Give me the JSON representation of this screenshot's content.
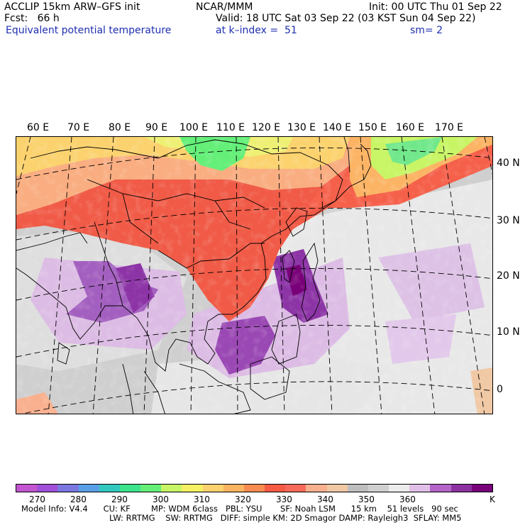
{
  "header": {
    "line1_left": "ACCLIP 15km ARW–GFS init",
    "line1_center": "NCAR/MMM",
    "line1_right": "Init: 00 UTC Thu 01 Sep 22",
    "line2_left": "Fcst:   66 h",
    "line2_right": "Valid: 18 UTC Sat 03 Sep 22 (03 KST Sun 04 Sep 22)",
    "line3_left": "Equivalent potential temperature",
    "line3_center": "at k–index =  51",
    "line3_right": "sm= 2"
  },
  "map": {
    "lon_labels": [
      "60 E",
      "70 E",
      "80 E",
      "90 E",
      "100 E",
      "110 E",
      "120 E",
      "130 E",
      "140 E",
      "150 E",
      "160 E",
      "170 E"
    ],
    "lat_labels": [
      "40 N",
      "30 N",
      "20 N",
      "10 N",
      "0"
    ]
  },
  "colorbar": {
    "colors": [
      "#c355d0",
      "#a050d8",
      "#7a78e0",
      "#5aa0e8",
      "#32c8c0",
      "#3ce38c",
      "#64ef78",
      "#c8f565",
      "#f5f064",
      "#fbd26e",
      "#fcb460",
      "#f88c50",
      "#f55a44",
      "#f76a5a",
      "#f9b08e",
      "#f0c8a4",
      "#bebebe",
      "#d0d0d0",
      "#ececec",
      "#e0c0e8",
      "#b464c8",
      "#8c32a0",
      "#780078"
    ],
    "ticks": [
      "270",
      "280",
      "290",
      "300",
      "310",
      "320",
      "330",
      "340",
      "350",
      "360",
      "K"
    ]
  },
  "footer": {
    "line1": "Model Info: V4.4      CU: KF        MP: WDM 6class   PBL: YSU       SF: Noah LSM      15 km    51 levels   90 sec",
    "line2": "LW: RRTMG    SW: RRTMG   DIFF: simple KM: 2D Smagor DAMP: Rayleigh3  SFLAY: MM5"
  }
}
